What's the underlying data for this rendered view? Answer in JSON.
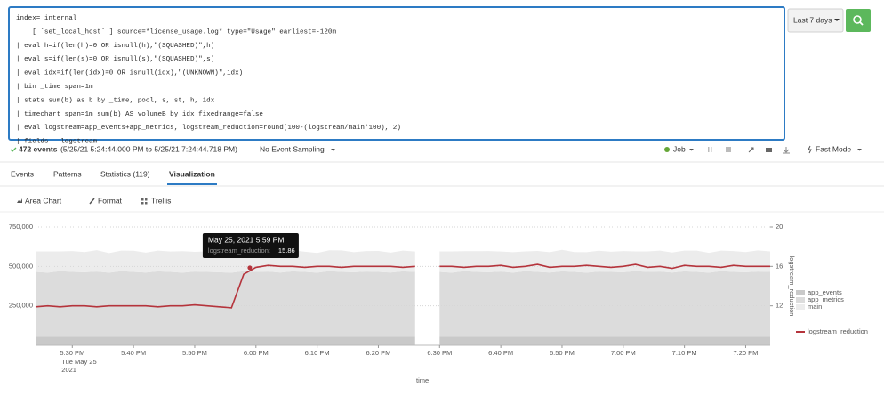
{
  "search": {
    "query": [
      "index=_internal",
      "    [ `set_local_host` ] source=*license_usage.log* type=\"Usage\" earliest=-120m",
      "| eval h=if(len(h)=0 OR isnull(h),\"(SQUASHED)\",h)",
      "| eval s=if(len(s)=0 OR isnull(s),\"(SQUASHED)\",s)",
      "| eval idx=if(len(idx)=0 OR isnull(idx),\"(UNKNOWN)\",idx)",
      "| bin _time span=1m",
      "| stats sum(b) as b by _time, pool, s, st, h, idx",
      "| timechart span=1m sum(b) AS volumeB by idx fixedrange=false",
      "| eval logstream=app_events+app_metrics, logstream_reduction=round(100-(logstream/main*100), 2)",
      "| fields - logstream"
    ],
    "time_picker": "Last 7 days"
  },
  "status": {
    "events": "472 events",
    "range": "(5/25/21 5:24:44.000 PM to 5/25/21 7:24:44.718 PM)",
    "sampling": "No Event Sampling",
    "job": "Job",
    "mode": "Fast Mode"
  },
  "tabs": [
    "Events",
    "Patterns",
    "Statistics (119)",
    "Visualization"
  ],
  "viz_toolbar": [
    "Area Chart",
    "Format",
    "Trellis"
  ],
  "chart_data": {
    "type": "area",
    "x_title": "_time",
    "y2_title": "logstream_reduction",
    "x": [
      "5:24 PM",
      "5:26 PM",
      "5:28 PM",
      "5:30 PM",
      "5:32 PM",
      "5:34 PM",
      "5:36 PM",
      "5:38 PM",
      "5:40 PM",
      "5:42 PM",
      "5:44 PM",
      "5:46 PM",
      "5:48 PM",
      "5:50 PM",
      "5:52 PM",
      "5:54 PM",
      "5:56 PM",
      "5:58 PM",
      "6:00 PM",
      "6:02 PM",
      "6:04 PM",
      "6:06 PM",
      "6:08 PM",
      "6:10 PM",
      "6:12 PM",
      "6:14 PM",
      "6:16 PM",
      "6:18 PM",
      "6:20 PM",
      "6:22 PM",
      "6:24 PM",
      "6:26 PM",
      "6:28 PM",
      "6:30 PM",
      "6:32 PM",
      "6:34 PM",
      "6:36 PM",
      "6:38 PM",
      "6:40 PM",
      "6:42 PM",
      "6:44 PM",
      "6:46 PM",
      "6:48 PM",
      "6:50 PM",
      "6:52 PM",
      "6:54 PM",
      "6:56 PM",
      "6:58 PM",
      "7:00 PM",
      "7:02 PM",
      "7:04 PM",
      "7:06 PM",
      "7:08 PM",
      "7:10 PM",
      "7:12 PM",
      "7:14 PM",
      "7:16 PM",
      "7:18 PM",
      "7:20 PM",
      "7:22 PM",
      "7:24 PM"
    ],
    "xlim": [
      "5:24 PM",
      "7:24 PM"
    ],
    "xticks": [
      "5:30 PM",
      "5:40 PM",
      "5:50 PM",
      "6:00 PM",
      "6:10 PM",
      "6:20 PM",
      "6:30 PM",
      "6:40 PM",
      "6:50 PM",
      "7:00 PM",
      "7:10 PM",
      "7:20 PM"
    ],
    "x_date_label": [
      "Tue May 25",
      "2021"
    ],
    "ylim": [
      0,
      750000
    ],
    "yticks": [
      {
        "value": 250000,
        "label": "250,000"
      },
      {
        "value": 500000,
        "label": "500,000"
      },
      {
        "value": 750000,
        "label": "750,000"
      }
    ],
    "y2lim": [
      8,
      20
    ],
    "y2ticks": [
      12,
      16,
      20
    ],
    "stacked": true,
    "series": [
      {
        "name": "app_events",
        "color": "#c9c9c9",
        "values": [
          55000,
          55000,
          55000,
          55000,
          55000,
          55000,
          55000,
          55000,
          55000,
          55000,
          55000,
          55000,
          55000,
          55000,
          55000,
          55000,
          55000,
          55000,
          55000,
          55000,
          55000,
          55000,
          55000,
          55000,
          55000,
          55000,
          55000,
          55000,
          55000,
          55000,
          55000,
          55000,
          null,
          55000,
          55000,
          55000,
          55000,
          55000,
          55000,
          55000,
          55000,
          55000,
          55000,
          55000,
          55000,
          55000,
          55000,
          55000,
          55000,
          55000,
          55000,
          55000,
          55000,
          55000,
          55000,
          55000,
          55000,
          55000,
          55000,
          55000,
          55000
        ]
      },
      {
        "name": "app_metrics",
        "color": "#dcdcdc",
        "values": [
          410000,
          405000,
          415000,
          410000,
          408000,
          412000,
          405000,
          415000,
          410000,
          406000,
          414000,
          410000,
          405000,
          412000,
          410000,
          408000,
          405000,
          415000,
          410000,
          412000,
          406000,
          414000,
          410000,
          405000,
          415000,
          410000,
          408000,
          412000,
          410000,
          406000,
          414000,
          410000,
          null,
          410000,
          405000,
          415000,
          410000,
          408000,
          412000,
          405000,
          415000,
          410000,
          406000,
          414000,
          410000,
          405000,
          412000,
          410000,
          408000,
          415000,
          410000,
          412000,
          406000,
          414000,
          410000,
          405000,
          415000,
          410000,
          408000,
          412000,
          410000
        ]
      },
      {
        "name": "main",
        "color": "#ececec",
        "values": [
          130000,
          135000,
          125000,
          132000,
          128000,
          136000,
          124000,
          130000,
          134000,
          126000,
          131000,
          129000,
          136000,
          125000,
          130000,
          133000,
          127000,
          131000,
          135000,
          126000,
          130000,
          134000,
          128000,
          125000,
          132000,
          136000,
          127000,
          130000,
          133000,
          126000,
          131000,
          129000,
          null,
          130000,
          135000,
          126000,
          131000,
          134000,
          127000,
          130000,
          125000,
          133000,
          129000,
          136000,
          126000,
          130000,
          132000,
          128000,
          134000,
          125000,
          130000,
          133000,
          127000,
          131000,
          135000,
          126000,
          130000,
          132000,
          128000,
          134000,
          130000
        ]
      },
      {
        "name": "logstream_reduction",
        "color": "#b5343c",
        "axis": "y2",
        "chart": "line",
        "values": [
          11.9,
          12.0,
          11.9,
          12.0,
          12.0,
          11.9,
          12.0,
          12.0,
          12.0,
          12.0,
          11.9,
          12.0,
          12.0,
          12.1,
          12.0,
          11.9,
          11.8,
          15.2,
          15.9,
          16.1,
          16.0,
          16.0,
          15.9,
          16.0,
          16.0,
          15.9,
          16.0,
          16.0,
          16.0,
          16.0,
          15.9,
          16.0,
          null,
          16.0,
          16.0,
          15.9,
          16.0,
          16.0,
          16.1,
          15.9,
          16.0,
          16.2,
          15.9,
          16.0,
          16.0,
          16.1,
          16.0,
          15.9,
          16.0,
          16.2,
          15.9,
          16.0,
          15.8,
          16.1,
          16.0,
          16.0,
          15.9,
          16.1,
          16.0,
          16.0,
          16.0
        ]
      }
    ],
    "tooltip": {
      "title": "May 25, 2021 5:59 PM",
      "label": "logstream_reduction:",
      "value": 15.86,
      "x": "5:59 PM"
    }
  }
}
